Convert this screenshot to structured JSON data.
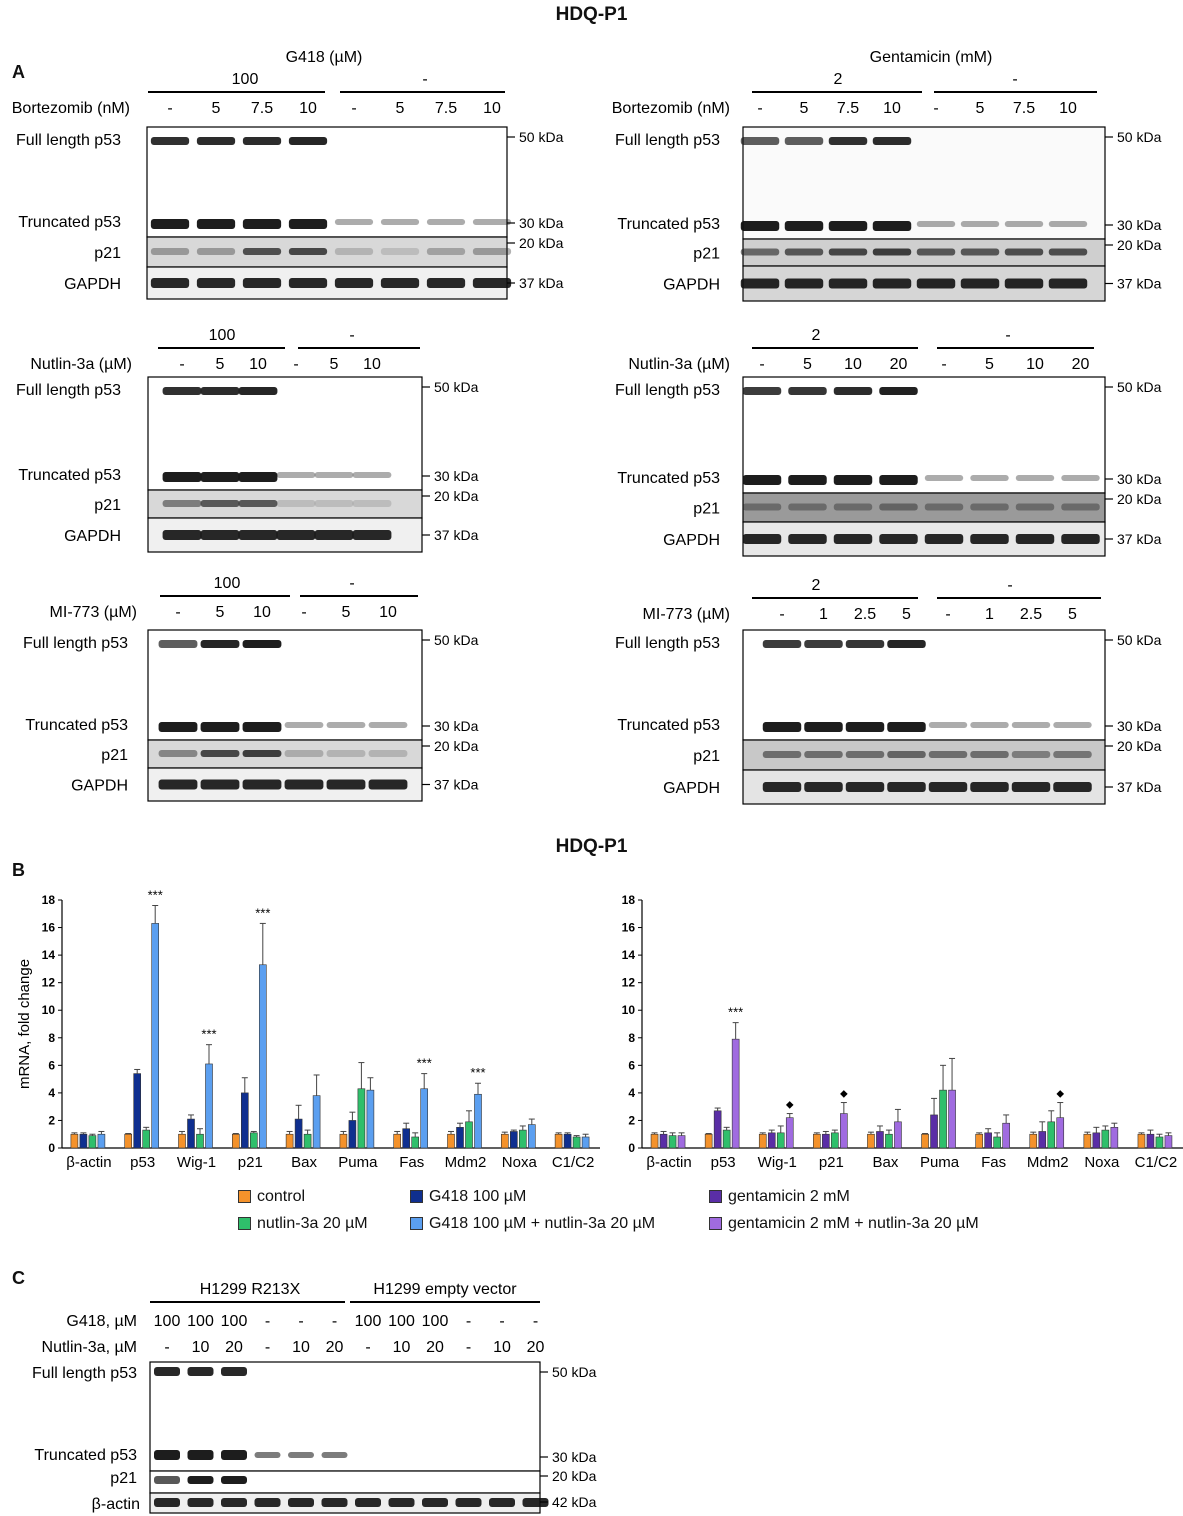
{
  "header": {
    "title_a": "HDQ-P1",
    "title_b": "HDQ-P1"
  },
  "panel_labels": {
    "a": "A",
    "b": "B",
    "c": "C"
  },
  "row_labels": {
    "full": "Full length p53",
    "trunc": "Truncated p53",
    "p21": "p21",
    "gapdh": "GAPDH",
    "bactin": "β-actin"
  },
  "kda": {
    "k50": "50 kDa",
    "k30": "30 kDa",
    "k20": "20 kDa",
    "k37": "37 kDa",
    "k42": "42 kDa"
  },
  "panelA": {
    "left": {
      "group_title": "G418 (µM)",
      "group1_value": "100",
      "group2_value": "-",
      "treatments": [
        {
          "label": "Bortezomib (nM)",
          "lanes": [
            "-",
            "5",
            "7.5",
            "10",
            "-",
            "5",
            "7.5",
            "10"
          ]
        },
        {
          "label": "Nutlin-3a (µM)",
          "lanes": [
            "-",
            "5",
            "10",
            "-",
            "5",
            "10"
          ]
        },
        {
          "label": "MI-773 (µM)",
          "lanes": [
            "-",
            "5",
            "10",
            "-",
            "5",
            "10"
          ]
        }
      ]
    },
    "right": {
      "group_title": "Gentamicin (mM)",
      "group1_value": "2",
      "group2_value": "-",
      "treatments": [
        {
          "label": "Bortezomib (nM)",
          "lanes": [
            "-",
            "5",
            "7.5",
            "10",
            "-",
            "5",
            "7.5",
            "10"
          ]
        },
        {
          "label": "Nutlin-3a (µM)",
          "lanes": [
            "-",
            "5",
            "10",
            "20",
            "-",
            "5",
            "10",
            "20"
          ]
        },
        {
          "label": "MI-773 (µM)",
          "lanes": [
            "-",
            "1",
            "2.5",
            "5",
            "-",
            "1",
            "2.5",
            "5"
          ]
        }
      ]
    }
  },
  "panelC": {
    "group1": "H1299 R213X",
    "group2": "H1299 empty vector",
    "g418_label": "G418, µM",
    "nutlin_label": "Nutlin-3a, µM",
    "g418_lanes": [
      "100",
      "100",
      "100",
      "-",
      "-",
      "-",
      "100",
      "100",
      "100",
      "-",
      "-",
      "-"
    ],
    "nutlin_lanes": [
      "-",
      "10",
      "20",
      "-",
      "10",
      "20",
      "-",
      "10",
      "20",
      "-",
      "10",
      "20"
    ]
  },
  "legend": {
    "control": "control",
    "g418": "G418 100 µM",
    "gentamicin": "gentamicin 2 mM",
    "nutlin": "nutlin-3a 20 µM",
    "g418_nutlin": "G418 100 µM + nutlin-3a 20 µM",
    "gentamicin_nutlin": "gentamicin 2 mM + nutlin-3a 20 µM"
  },
  "colors": {
    "control": "#f4922b",
    "g418": "#0f2f8f",
    "nutlin": "#2fbf6b",
    "g418_nutlin": "#5b9ff0",
    "gentamicin": "#5a2ea6",
    "gentamicin_nutlin": "#a06be0"
  },
  "chart_data": [
    {
      "type": "bar",
      "ylabel": "mRNA, fold change",
      "ylim": [
        0,
        18
      ],
      "yticks": [
        0,
        2,
        4,
        6,
        8,
        10,
        12,
        14,
        16,
        18
      ],
      "categories": [
        "β-actin",
        "p53",
        "Wig-1",
        "p21",
        "Bax",
        "Puma",
        "Fas",
        "Mdm2",
        "Noxa",
        "C1/C2"
      ],
      "series": [
        {
          "name": "control",
          "color": "#f4922b",
          "values": [
            1.0,
            1.0,
            1.0,
            1.0,
            1.0,
            1.0,
            1.0,
            1.0,
            1.0,
            1.0
          ],
          "errors": [
            0.1,
            0.05,
            0.2,
            0.05,
            0.2,
            0.2,
            0.2,
            0.2,
            0.15,
            0.1
          ]
        },
        {
          "name": "G418 100 µM",
          "color": "#0f2f8f",
          "values": [
            1.0,
            5.4,
            2.1,
            4.0,
            2.1,
            2.0,
            1.4,
            1.5,
            1.2,
            1.0
          ],
          "errors": [
            0.1,
            0.3,
            0.3,
            1.1,
            1.0,
            0.6,
            0.4,
            0.3,
            0.1,
            0.1
          ]
        },
        {
          "name": "nutlin-3a 20 µM",
          "color": "#2fbf6b",
          "values": [
            0.9,
            1.3,
            1.0,
            1.1,
            1.0,
            4.3,
            0.8,
            1.9,
            1.3,
            0.8
          ],
          "errors": [
            0.1,
            0.2,
            0.4,
            0.1,
            0.3,
            1.9,
            0.3,
            0.8,
            0.3,
            0.1
          ]
        },
        {
          "name": "G418 100 µM + nutlin-3a 20 µM",
          "color": "#5b9ff0",
          "values": [
            1.0,
            16.3,
            6.1,
            13.3,
            3.8,
            4.2,
            4.3,
            3.9,
            1.7,
            0.8
          ],
          "errors": [
            0.2,
            1.3,
            1.4,
            3.0,
            1.5,
            0.9,
            1.1,
            0.8,
            0.4,
            0.2
          ]
        }
      ],
      "annotations": [
        {
          "category": "p53",
          "text": "***"
        },
        {
          "category": "Wig-1",
          "text": "***"
        },
        {
          "category": "p21",
          "text": "***"
        },
        {
          "category": "Fas",
          "text": "***"
        },
        {
          "category": "Mdm2",
          "text": "***"
        }
      ]
    },
    {
      "type": "bar",
      "ylim": [
        0,
        18
      ],
      "yticks": [
        0,
        2,
        4,
        6,
        8,
        10,
        12,
        14,
        16,
        18
      ],
      "categories": [
        "β-actin",
        "p53",
        "Wig-1",
        "p21",
        "Bax",
        "Puma",
        "Fas",
        "Mdm2",
        "Noxa",
        "C1/C2"
      ],
      "series": [
        {
          "name": "control",
          "color": "#f4922b",
          "values": [
            1.0,
            1.0,
            1.0,
            1.0,
            1.0,
            1.0,
            1.0,
            1.0,
            1.0,
            1.0
          ],
          "errors": [
            0.1,
            0.05,
            0.1,
            0.1,
            0.15,
            0.05,
            0.1,
            0.15,
            0.15,
            0.1
          ]
        },
        {
          "name": "gentamicin 2 mM",
          "color": "#5a2ea6",
          "values": [
            1.0,
            2.7,
            1.1,
            1.0,
            1.2,
            2.4,
            1.1,
            1.2,
            1.1,
            1.0
          ],
          "errors": [
            0.2,
            0.2,
            0.2,
            0.2,
            0.4,
            1.2,
            0.3,
            0.7,
            0.4,
            0.3
          ]
        },
        {
          "name": "nutlin-3a 20 µM",
          "color": "#2fbf6b",
          "values": [
            0.9,
            1.3,
            1.1,
            1.1,
            1.0,
            4.2,
            0.8,
            1.9,
            1.3,
            0.8
          ],
          "errors": [
            0.2,
            0.2,
            0.5,
            0.2,
            0.3,
            1.8,
            0.3,
            0.8,
            0.3,
            0.2
          ]
        },
        {
          "name": "gentamicin 2 mM + nutlin-3a 20 µM",
          "color": "#a06be0",
          "values": [
            0.9,
            7.9,
            2.2,
            2.5,
            1.9,
            4.2,
            1.8,
            2.2,
            1.5,
            0.9
          ],
          "errors": [
            0.2,
            1.2,
            0.3,
            0.8,
            0.9,
            2.3,
            0.6,
            1.1,
            0.3,
            0.2
          ]
        }
      ],
      "annotations": [
        {
          "category": "p53",
          "text": "***"
        },
        {
          "category": "Wig-1",
          "text": "◆"
        },
        {
          "category": "p21",
          "text": "◆"
        },
        {
          "category": "Mdm2",
          "text": "◆"
        }
      ]
    }
  ]
}
